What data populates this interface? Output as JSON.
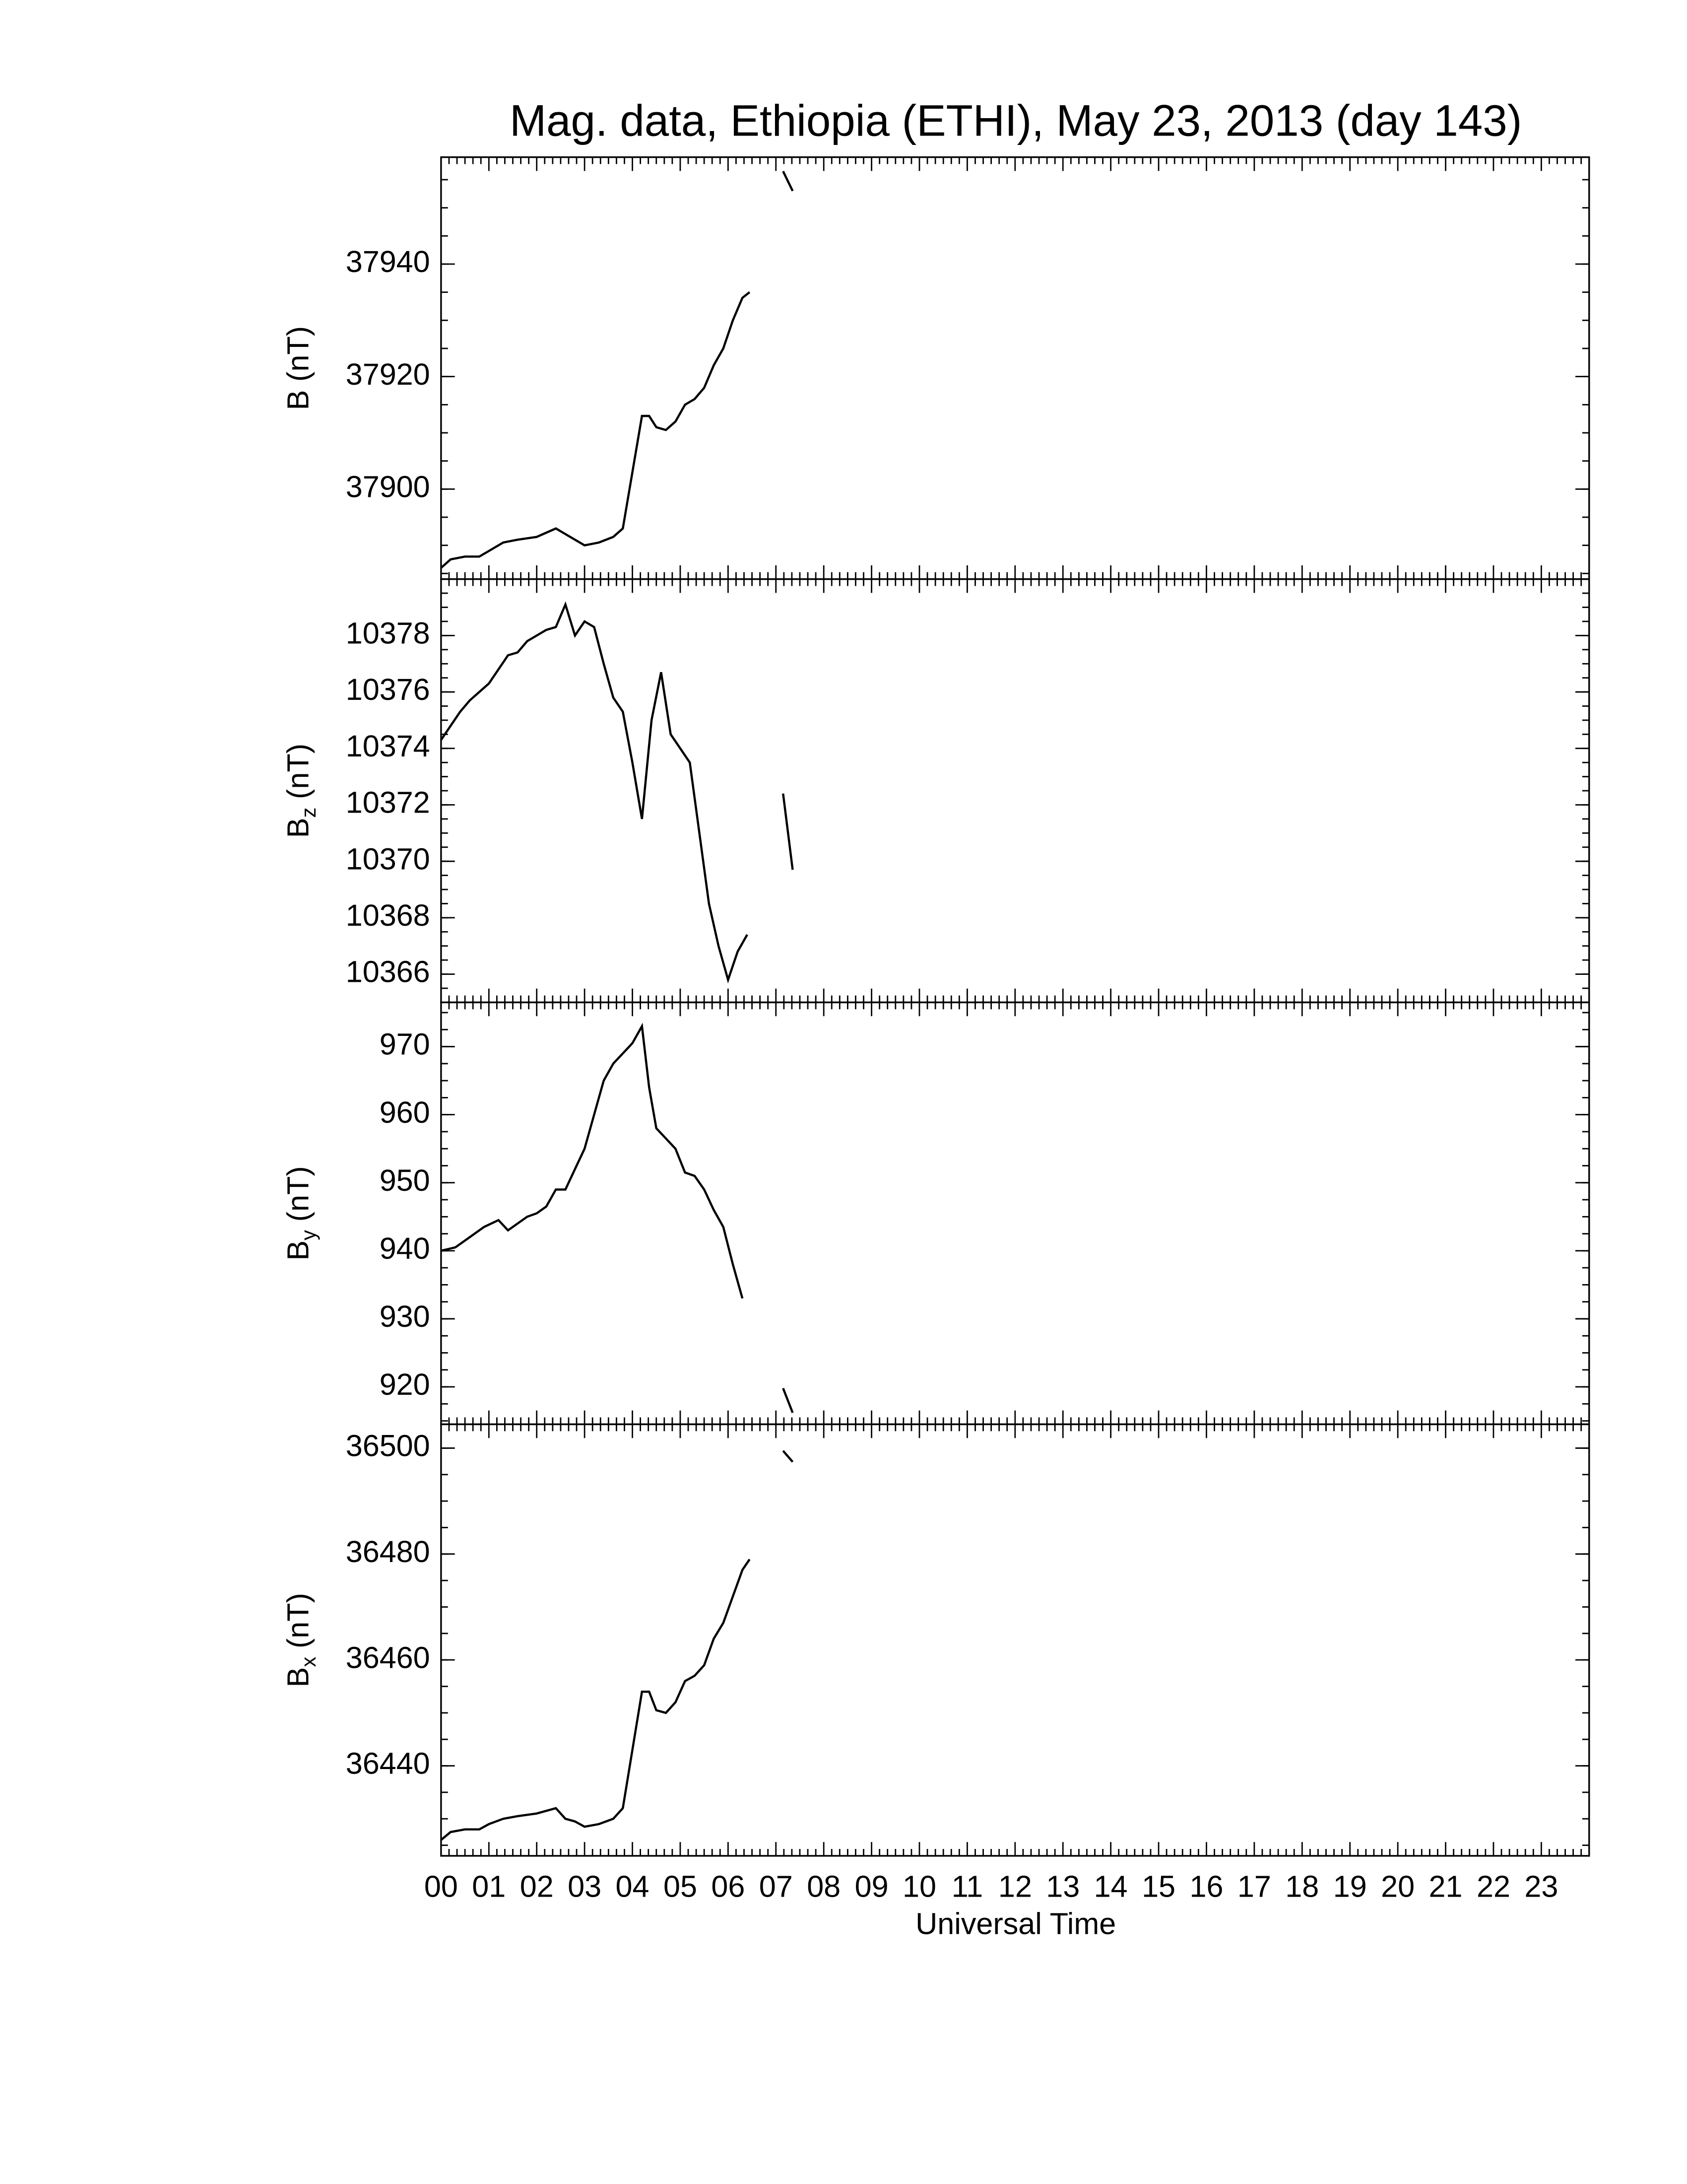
{
  "chart_data": [
    {
      "type": "line",
      "title": "Mag. data, Ethiopia (ETHI), May 23, 2013 (day 143)",
      "ylabel": {
        "symbol": "B",
        "unit": "(nT)"
      },
      "color": "#000000",
      "ylim": [
        37884,
        37959
      ],
      "yticks": [
        37900,
        37920,
        37940
      ],
      "x": [
        0.0,
        0.2,
        0.5,
        0.8,
        1.0,
        1.3,
        1.6,
        2.0,
        2.4,
        2.6,
        2.8,
        3.0,
        3.3,
        3.6,
        3.8,
        4.0,
        4.2,
        4.35,
        4.5,
        4.7,
        4.9,
        5.1,
        5.3,
        5.5,
        5.7,
        5.9,
        6.1,
        6.3,
        6.45,
        null,
        7.15,
        7.35
      ],
      "values": [
        37886,
        37887.5,
        37888,
        37888,
        37889,
        37890.5,
        37891,
        37891.5,
        37893,
        37892,
        37891,
        37890,
        37890.5,
        37891.5,
        37893,
        37903,
        37913,
        37913,
        37911,
        37910.5,
        37912,
        37915,
        37916,
        37918,
        37922,
        37925,
        37930,
        37934,
        37935,
        null,
        37956.5,
        37953
      ]
    },
    {
      "type": "line",
      "ylabel": {
        "symbol": "B",
        "subscript": "z",
        "unit": "(nT)"
      },
      "color": "#000000",
      "ylim": [
        10365,
        10380
      ],
      "yticks": [
        10366,
        10368,
        10370,
        10372,
        10374,
        10376,
        10378
      ],
      "x": [
        0.0,
        0.2,
        0.4,
        0.6,
        0.8,
        1.0,
        1.2,
        1.4,
        1.6,
        1.8,
        2.0,
        2.2,
        2.4,
        2.6,
        2.8,
        3.0,
        3.2,
        3.4,
        3.6,
        3.8,
        4.0,
        4.2,
        4.4,
        4.6,
        4.8,
        5.0,
        5.2,
        5.4,
        5.6,
        5.8,
        6.0,
        6.2,
        6.4,
        null,
        7.15,
        7.35
      ],
      "values": [
        10374.3,
        10374.8,
        10375.3,
        10375.7,
        10376.0,
        10376.3,
        10376.8,
        10377.3,
        10377.4,
        10377.8,
        10378.0,
        10378.2,
        10378.3,
        10379.1,
        10378.0,
        10378.5,
        10378.3,
        10377.0,
        10375.8,
        10375.3,
        10373.5,
        10371.5,
        10375.0,
        10376.7,
        10374.5,
        10374.0,
        10373.5,
        10371.0,
        10368.5,
        10367.0,
        10365.8,
        10366.8,
        10367.4,
        null,
        10372.4,
        10369.7
      ]
    },
    {
      "type": "line",
      "ylabel": {
        "symbol": "B",
        "subscript": "y",
        "unit": "(nT)"
      },
      "color": "#000000",
      "ylim": [
        914.5,
        976.5
      ],
      "yticks": [
        920,
        930,
        940,
        950,
        960,
        970
      ],
      "x": [
        0.0,
        0.3,
        0.6,
        0.9,
        1.2,
        1.4,
        1.6,
        1.8,
        2.0,
        2.2,
        2.4,
        2.6,
        2.8,
        3.0,
        3.2,
        3.4,
        3.6,
        3.8,
        4.0,
        4.2,
        4.35,
        4.5,
        4.7,
        4.9,
        5.1,
        5.3,
        5.5,
        5.7,
        5.9,
        6.1,
        6.3,
        null,
        7.15,
        7.35
      ],
      "values": [
        940,
        940.5,
        942,
        943.5,
        944.5,
        943,
        944,
        945,
        945.5,
        946.5,
        949,
        949,
        952,
        955,
        960,
        965,
        967.5,
        969,
        970.5,
        973,
        964,
        958,
        956.5,
        955,
        951.5,
        951,
        949,
        946,
        943.5,
        938,
        933,
        null,
        919.8,
        916.2
      ]
    },
    {
      "type": "line",
      "ylabel": {
        "symbol": "B",
        "subscript": "x",
        "unit": "(nT)"
      },
      "xlabel": "Universal Time",
      "color": "#000000",
      "ylim": [
        36423,
        36504.5
      ],
      "yticks": [
        36440,
        36460,
        36480,
        36500
      ],
      "xlim": [
        0,
        24
      ],
      "xticks": [
        {
          "value": 0,
          "label": "00"
        },
        {
          "value": 1,
          "label": "01"
        },
        {
          "value": 2,
          "label": "02"
        },
        {
          "value": 3,
          "label": "03"
        },
        {
          "value": 4,
          "label": "04"
        },
        {
          "value": 5,
          "label": "05"
        },
        {
          "value": 6,
          "label": "06"
        },
        {
          "value": 7,
          "label": "07"
        },
        {
          "value": 8,
          "label": "08"
        },
        {
          "value": 9,
          "label": "09"
        },
        10,
        11,
        12,
        13,
        14,
        15,
        16,
        17,
        18,
        19,
        20,
        21,
        22,
        23
      ],
      "x": [
        0.0,
        0.2,
        0.5,
        0.8,
        1.0,
        1.3,
        1.6,
        2.0,
        2.4,
        2.6,
        2.8,
        3.0,
        3.3,
        3.6,
        3.8,
        4.0,
        4.2,
        4.35,
        4.5,
        4.7,
        4.9,
        5.1,
        5.3,
        5.5,
        5.7,
        5.9,
        6.1,
        6.3,
        6.45,
        null,
        7.15,
        7.35
      ],
      "values": [
        36426,
        36427.5,
        36428,
        36428,
        36429,
        36430,
        36430.5,
        36431,
        36432,
        36430,
        36429.5,
        36428.5,
        36429,
        36430,
        36432,
        36443,
        36454,
        36454,
        36450.5,
        36450,
        36452,
        36456,
        36457,
        36459,
        36464,
        36467,
        36472,
        36477,
        36479,
        null,
        36499.5,
        36497.4
      ]
    }
  ]
}
